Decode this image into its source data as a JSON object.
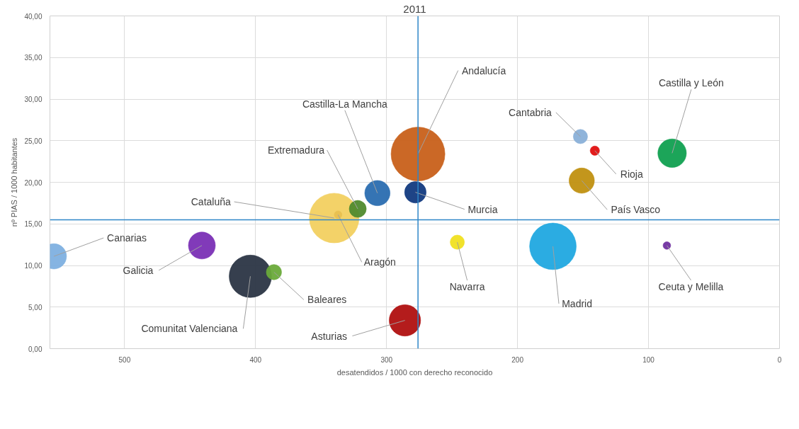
{
  "chart_data": {
    "type": "bubble",
    "title": "2011",
    "xlabel": "desatendidos / 1000 con derecho reconocido",
    "ylabel": "nº PIAS / 1000 habitantes",
    "xlim": [
      557,
      0
    ],
    "xticks": [
      500,
      400,
      300,
      200,
      100,
      0
    ],
    "ylim": [
      0,
      40
    ],
    "yticks": [
      {
        "value": 0,
        "label": "0,00"
      },
      {
        "value": 5,
        "label": "5,00"
      },
      {
        "value": 10,
        "label": "10,00"
      },
      {
        "value": 15,
        "label": "15,00"
      },
      {
        "value": 20,
        "label": "20,00"
      },
      {
        "value": 25,
        "label": "25,00"
      },
      {
        "value": 30,
        "label": "30,00"
      },
      {
        "value": 35,
        "label": "35,00"
      },
      {
        "value": 40,
        "label": "40,00"
      }
    ],
    "grid": true,
    "ref_lines": [
      {
        "axis": "x",
        "value": 276,
        "color": "#2e86c8"
      },
      {
        "axis": "y",
        "value": 15.5,
        "color": "#2e86c8"
      }
    ],
    "series": [
      {
        "name": "Canarias",
        "color": "#7eb0e0",
        "x": [
          554
        ],
        "values": [
          11.1
        ],
        "sizes": [
          0.22
        ]
      },
      {
        "name": "Galicia",
        "color": "#7a2fb5",
        "x": [
          441
        ],
        "values": [
          12.4
        ],
        "sizes": [
          0.25
        ]
      },
      {
        "name": "Comunitat Valenciana",
        "color": "#2b3545",
        "x": [
          404
        ],
        "values": [
          8.7
        ],
        "sizes": [
          0.62
        ]
      },
      {
        "name": "Baleares",
        "color": "#6aaa3a",
        "x": [
          386
        ],
        "values": [
          9.2
        ],
        "sizes": [
          0.08
        ]
      },
      {
        "name": "Cataluña",
        "color": "#f2d060",
        "x": [
          340
        ],
        "values": [
          15.7
        ],
        "sizes": [
          0.85
        ]
      },
      {
        "name": "Aragón",
        "color": "#e8c050",
        "x": [
          337
        ],
        "values": [
          16.1
        ],
        "sizes": [
          0.02
        ]
      },
      {
        "name": "Extremadura",
        "color": "#4f8a2e",
        "x": [
          322
        ],
        "values": [
          16.8
        ],
        "sizes": [
          0.1
        ]
      },
      {
        "name": "Castilla-La Mancha",
        "color": "#2a6db0",
        "x": [
          307
        ],
        "values": [
          18.7
        ],
        "sizes": [
          0.22
        ]
      },
      {
        "name": "Andalucía",
        "color": "#c8601a",
        "x": [
          276
        ],
        "values": [
          23.4
        ],
        "sizes": [
          1
        ]
      },
      {
        "name": "Murcia",
        "color": "#123a80",
        "x": [
          278
        ],
        "values": [
          18.8
        ],
        "sizes": [
          0.16
        ]
      },
      {
        "name": "Asturias",
        "color": "#b01010",
        "x": [
          286
        ],
        "values": [
          3.4
        ],
        "sizes": [
          0.34
        ]
      },
      {
        "name": "Navarra",
        "color": "#f0e020",
        "x": [
          246
        ],
        "values": [
          12.8
        ],
        "sizes": [
          0.07
        ]
      },
      {
        "name": "Madrid",
        "color": "#20a8e0",
        "x": [
          173
        ],
        "values": [
          12.3
        ],
        "sizes": [
          0.75
        ]
      },
      {
        "name": "Cantabria",
        "color": "#8ab0d8",
        "x": [
          152
        ],
        "values": [
          25.5
        ],
        "sizes": [
          0.07
        ]
      },
      {
        "name": "Rioja",
        "color": "#e01010",
        "x": [
          141
        ],
        "values": [
          23.8
        ],
        "sizes": [
          0.03
        ]
      },
      {
        "name": "País Vasco",
        "color": "#c09010",
        "x": [
          151
        ],
        "values": [
          20.2
        ],
        "sizes": [
          0.22
        ]
      },
      {
        "name": "Castilla y León",
        "color": "#10a050",
        "x": [
          82
        ],
        "values": [
          23.5
        ],
        "sizes": [
          0.28
        ]
      },
      {
        "name": "Ceuta y Melilla",
        "color": "#7030a0",
        "x": [
          86
        ],
        "values": [
          12.4
        ],
        "sizes": [
          0.02
        ]
      }
    ]
  }
}
